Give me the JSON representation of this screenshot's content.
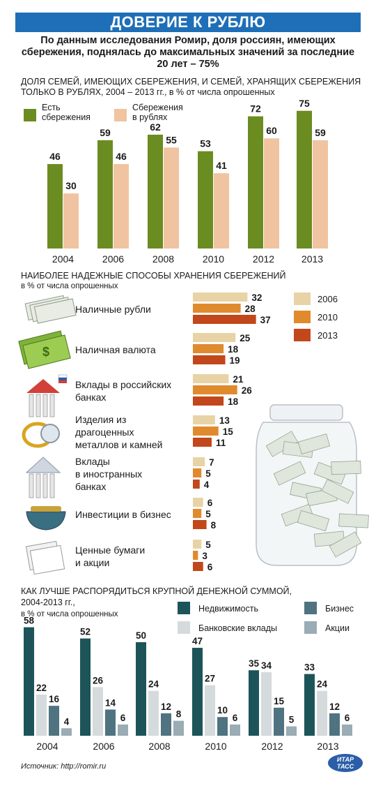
{
  "header": {
    "title": "ДОВЕРИЕ К РУБЛЮ",
    "subtitle": "По данным исследования Ромир, доля россиян, имеющих сбережения, поднялась до максимальных значений за последние 20 лет – 75%"
  },
  "chart_data": [
    {
      "type": "bar",
      "title": "ДОЛЯ СЕМЕЙ, ИМЕЮЩИХ СБЕРЕЖЕНИЯ, И СЕМЕЙ, ХРАНЯЩИХ СБЕРЕЖЕНИЯ ТОЛЬКО В РУБЛЯХ, 2004 – 2013 гг., в % от числа опрошенных",
      "categories": [
        "2004",
        "2006",
        "2008",
        "2010",
        "2012",
        "2013"
      ],
      "series": [
        {
          "name": "Есть сбережения",
          "color": "#6b8c21",
          "values": [
            46,
            59,
            62,
            53,
            72,
            75
          ]
        },
        {
          "name": "Сбережения в рублях",
          "color": "#f0c4a0",
          "values": [
            30,
            46,
            55,
            41,
            60,
            59
          ]
        }
      ],
      "ylim": [
        0,
        80
      ]
    },
    {
      "type": "bar",
      "orientation": "horizontal",
      "title": "НАИБОЛЕЕ НАДЕЖНЫЕ СПОСОБЫ ХРАНЕНИЯ СБЕРЕЖЕНИЙ",
      "subtitle": "в % от числа опрошенных",
      "categories": [
        "Наличные рубли",
        "Наличная валюта",
        "Вклады в российских банках",
        "Изделия из драгоценных металлов и камней",
        "Вклады в иностранных банках",
        "Инвестиции в бизнес",
        "Ценные бумаги и акции"
      ],
      "category_lines": [
        [
          "Наличные рубли"
        ],
        [
          "Наличная валюта"
        ],
        [
          "Вклады в российских",
          "банках"
        ],
        [
          "Изделия из",
          "драгоценных",
          "металлов и камней"
        ],
        [
          "Вклады",
          "в иностранных",
          "банках"
        ],
        [
          "Инвестиции в бизнес"
        ],
        [
          "Ценные бумаги",
          "и акции"
        ]
      ],
      "series": [
        {
          "name": "2006",
          "color": "#e8d3a6",
          "values": [
            32,
            25,
            21,
            13,
            7,
            6,
            5
          ]
        },
        {
          "name": "2010",
          "color": "#e08a2e",
          "values": [
            28,
            18,
            26,
            15,
            5,
            5,
            3
          ]
        },
        {
          "name": "2013",
          "color": "#c2471b",
          "values": [
            37,
            19,
            18,
            11,
            4,
            8,
            6
          ]
        }
      ],
      "legend_position": "right",
      "xlim": [
        0,
        40
      ]
    },
    {
      "type": "bar",
      "title": "КАК ЛУЧШЕ РАСПОРЯДИТЬСЯ КРУПНОЙ ДЕНЕЖНОЙ СУММОЙ,",
      "title_line2": "2004-2013 гг.,",
      "subtitle": "в % от числа опрошенных",
      "categories": [
        "2004",
        "2006",
        "2008",
        "2010",
        "2012",
        "2013"
      ],
      "series": [
        {
          "name": "Недвижимость",
          "color": "#1d5459",
          "values": [
            58,
            52,
            50,
            47,
            35,
            33
          ]
        },
        {
          "name": "Банковские вклады",
          "color": "#d5dadd",
          "values": [
            22,
            26,
            24,
            27,
            34,
            24
          ]
        },
        {
          "name": "Бизнес",
          "color": "#4f7380",
          "values": [
            16,
            14,
            12,
            10,
            15,
            12
          ]
        },
        {
          "name": "Акции",
          "color": "#9aacb4",
          "values": [
            4,
            6,
            8,
            6,
            5,
            6
          ]
        }
      ],
      "ylim": [
        0,
        60
      ]
    }
  ],
  "footer": {
    "source": "Источник: http://romir.ru",
    "logo_text": "ИТАР-ТАСС"
  },
  "icons": [
    "banknotes-icon",
    "dollar-bill-icon",
    "bank-building-russia-icon",
    "ring-icon",
    "bank-building-foreign-icon",
    "purse-icon",
    "documents-icon",
    "jar-with-money-icon"
  ]
}
